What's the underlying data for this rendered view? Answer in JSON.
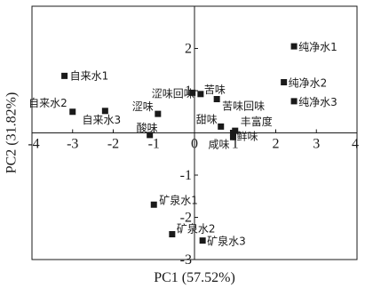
{
  "chart_data": {
    "type": "scatter",
    "title": "",
    "xlabel": "PC1 (57.52%)",
    "ylabel": "PC2 (31.82%)",
    "xlim": [
      -4,
      4
    ],
    "ylim": [
      -3,
      3
    ],
    "xticks": [
      "-4",
      "-3",
      "-2",
      "-1",
      "0",
      "1",
      "2",
      "3",
      "4"
    ],
    "yticks": [
      "-3",
      "-2",
      "-1",
      "1",
      "2"
    ],
    "grid": false,
    "zero_lines": true,
    "marker": "square",
    "marker_color": "#1a1a1a",
    "points": [
      {
        "label": "自来水1",
        "x": -3.2,
        "y": 1.35
      },
      {
        "label": "自来水2",
        "x": -3.0,
        "y": 0.5
      },
      {
        "label": "自来水3",
        "x": -2.2,
        "y": 0.52
      },
      {
        "label": "涩味回味",
        "x": -0.05,
        "y": 0.95
      },
      {
        "label": "苦味",
        "x": 0.15,
        "y": 0.92
      },
      {
        "label": "涩味",
        "x": -0.9,
        "y": 0.45
      },
      {
        "label": "酸味",
        "x": -1.1,
        "y": -0.05
      },
      {
        "label": "苦味回味",
        "x": 0.55,
        "y": 0.8
      },
      {
        "label": "甜味",
        "x": 0.65,
        "y": 0.15
      },
      {
        "label": "咸味",
        "x": 0.95,
        "y": 0.0
      },
      {
        "label": "丰富度",
        "x": 1.0,
        "y": 0.05
      },
      {
        "label": "鲜味",
        "x": 0.95,
        "y": -0.1
      },
      {
        "label": "纯净水1",
        "x": 2.45,
        "y": 2.05
      },
      {
        "label": "纯净水2",
        "x": 2.2,
        "y": 1.2
      },
      {
        "label": "纯净水3",
        "x": 2.45,
        "y": 0.75
      },
      {
        "label": "矿泉水1",
        "x": -1.0,
        "y": -1.7
      },
      {
        "label": "矿泉水2",
        "x": -0.55,
        "y": -2.4
      },
      {
        "label": "矿泉水3",
        "x": 0.2,
        "y": -2.55
      }
    ]
  }
}
